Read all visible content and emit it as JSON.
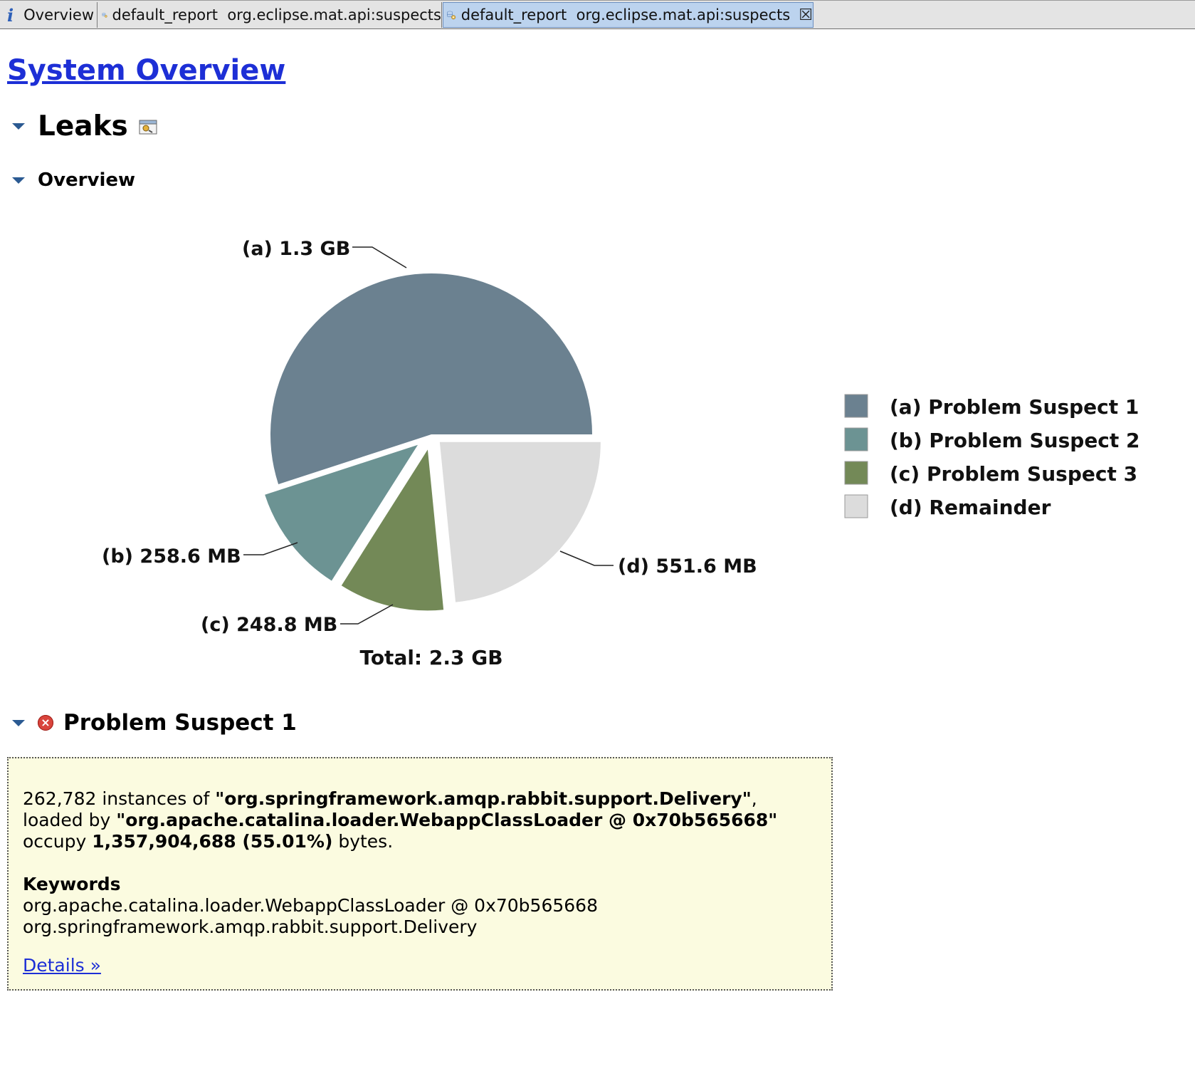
{
  "tabs": [
    {
      "label": "Overview",
      "icon": "info-icon",
      "active": false
    },
    {
      "label": "default_report  org.eclipse.mat.api:suspects",
      "icon": "report-icon",
      "active": false
    },
    {
      "label": "default_report  org.eclipse.mat.api:suspects",
      "icon": "report-icon",
      "active": true
    }
  ],
  "page": {
    "title": "System Overview",
    "leaks_heading": "Leaks",
    "overview_heading": "Overview",
    "suspect_heading": "Problem Suspect 1"
  },
  "chart_data": {
    "type": "pie",
    "total_label": "Total: 2.3 GB",
    "slices": [
      {
        "key": "(a)",
        "label": "Problem Suspect 1",
        "value_label": "1.3 GB",
        "value_mb": 1295,
        "color": "#6b8190"
      },
      {
        "key": "(b)",
        "label": "Problem Suspect 2",
        "value_label": "258.6 MB",
        "value_mb": 258.6,
        "color": "#6c9393"
      },
      {
        "key": "(c)",
        "label": "Problem Suspect 3",
        "value_label": "248.8 MB",
        "value_mb": 248.8,
        "color": "#738957"
      },
      {
        "key": "(d)",
        "label": "Remainder",
        "value_label": "551.6 MB",
        "value_mb": 551.6,
        "color": "#dcdcdc"
      }
    ],
    "legend_position": "right"
  },
  "suspect": {
    "count": "262,782",
    "text1": " instances of ",
    "class_name": "\"org.springframework.amqp.rabbit.support.Delivery\"",
    "text2": ", loaded by ",
    "loader": "\"org.apache.catalina.loader.WebappClassLoader @ 0x70b565668\"",
    "text3": " occupy ",
    "bytes": "1,357,904,688 (55.01%)",
    "text4": " bytes.",
    "keywords_title": "Keywords",
    "keywords": [
      "org.apache.catalina.loader.WebappClassLoader @ 0x70b565668",
      "org.springframework.amqp.rabbit.support.Delivery"
    ],
    "details_link": "Details »"
  }
}
